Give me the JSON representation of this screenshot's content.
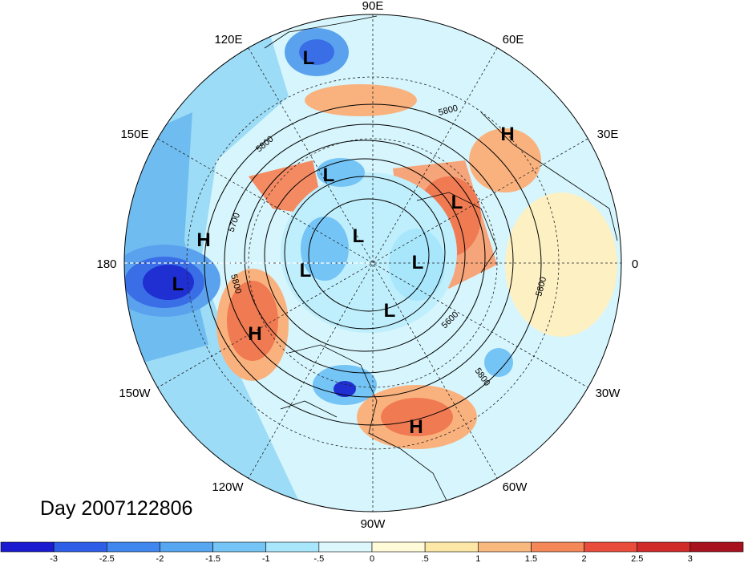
{
  "title": "Day 2007122806",
  "longitude_labels": [
    "90E",
    "60E",
    "30E",
    "0",
    "30W",
    "60W",
    "90W",
    "120W",
    "150W",
    "180",
    "150E",
    "120E"
  ],
  "centers": [
    {
      "type": "L",
      "label": "L"
    },
    {
      "type": "L",
      "label": "L"
    },
    {
      "type": "L",
      "label": "L"
    },
    {
      "type": "L",
      "label": "L"
    },
    {
      "type": "L",
      "label": "L"
    },
    {
      "type": "L",
      "label": "L"
    },
    {
      "type": "L",
      "label": "L"
    },
    {
      "type": "L",
      "label": "L"
    },
    {
      "type": "H",
      "label": "H"
    },
    {
      "type": "H",
      "label": "H"
    },
    {
      "type": "H",
      "label": "H"
    },
    {
      "type": "H",
      "label": "H"
    }
  ],
  "contour_labels": [
    "5800",
    "5800",
    "5700",
    "5800",
    "5600",
    "5800",
    "5800"
  ],
  "colorbar": {
    "tick_labels": [
      "-3",
      "-2.5",
      "-2",
      "-1.5",
      "-1",
      "-.5",
      "0",
      ".5",
      "1",
      "1.5",
      "2",
      "2.5",
      "3"
    ],
    "colors": [
      "#1a1ad0",
      "#2e5ee8",
      "#3f86ee",
      "#56a6f2",
      "#74c4f6",
      "#a8e6fb",
      "#dcf8fd",
      "#fffbd8",
      "#fde7a7",
      "#f9b87d",
      "#f38758",
      "#ea4c3c",
      "#d02a2a",
      "#a8121e"
    ]
  }
}
